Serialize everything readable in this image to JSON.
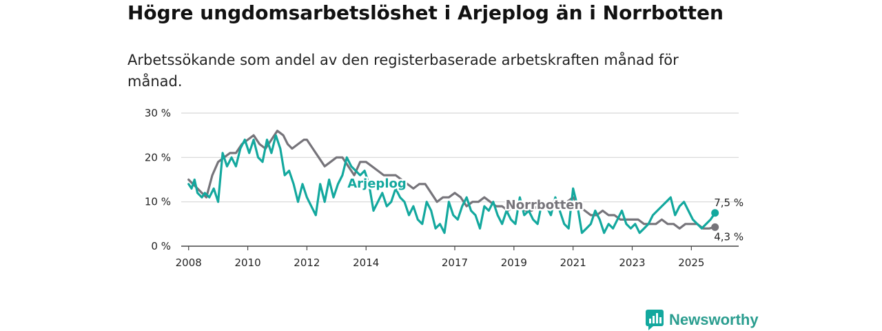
{
  "title": "Högre ungdomsarbetslöshet i Arjeplog än i Norrbotten",
  "subtitle": "Arbetssökande som andel av den registerbaserade arbetskraften månad för månad.",
  "brand": {
    "name": "Newsworthy"
  },
  "colors": {
    "arjeplog": "#13a89e",
    "norrbotten": "#76747a",
    "grid": "#d6d6d6",
    "axis": "#444444"
  },
  "chart_data": {
    "type": "line",
    "y_ticks": [
      {
        "value": 0,
        "label": "0 %"
      },
      {
        "value": 10,
        "label": "10 %"
      },
      {
        "value": 20,
        "label": "20 %"
      },
      {
        "value": 30,
        "label": "30 %"
      }
    ],
    "ylim": [
      0,
      30
    ],
    "xlim": [
      2007.75,
      2026.6
    ],
    "x_ticks": [
      {
        "value": 2008,
        "label": "2008"
      },
      {
        "value": 2010,
        "label": "2010"
      },
      {
        "value": 2012,
        "label": "2012"
      },
      {
        "value": 2014,
        "label": "2014"
      },
      {
        "value": 2017,
        "label": "2017"
      },
      {
        "value": 2019,
        "label": "2019"
      },
      {
        "value": 2021,
        "label": "2021"
      },
      {
        "value": 2023,
        "label": "2023"
      },
      {
        "value": 2025,
        "label": "2025"
      }
    ],
    "series": [
      {
        "name": "Norrbotten",
        "label": "Norrbotten",
        "end_label": "4,3 %",
        "x": [
          2008.0,
          2008.3,
          2008.6,
          2008.8,
          2009.0,
          2009.2,
          2009.4,
          2009.6,
          2009.8,
          2010.0,
          2010.2,
          2010.4,
          2010.6,
          2010.8,
          2011.0,
          2011.2,
          2011.35,
          2011.5,
          2011.7,
          2011.9,
          2012.0,
          2012.2,
          2012.4,
          2012.6,
          2012.8,
          2013.0,
          2013.2,
          2013.4,
          2013.6,
          2013.8,
          2014.0,
          2014.2,
          2014.4,
          2014.6,
          2014.8,
          2015.0,
          2015.2,
          2015.4,
          2015.6,
          2015.8,
          2016.0,
          2016.2,
          2016.4,
          2016.6,
          2016.8,
          2017.0,
          2017.2,
          2017.4,
          2017.6,
          2017.8,
          2018.0,
          2018.2,
          2018.4,
          2018.6,
          2018.8,
          2019.0,
          2019.2,
          2019.4,
          2019.6,
          2019.8,
          2020.0,
          2020.2,
          2020.4,
          2020.6,
          2020.8,
          2021.0,
          2021.2,
          2021.4,
          2021.6,
          2021.8,
          2022.0,
          2022.2,
          2022.4,
          2022.6,
          2022.8,
          2023.0,
          2023.2,
          2023.4,
          2023.6,
          2023.8,
          2024.0,
          2024.2,
          2024.4,
          2024.6,
          2024.8,
          2025.0,
          2025.2,
          2025.4,
          2025.6,
          2025.8
        ],
        "values": [
          15,
          13,
          11,
          16,
          19,
          20,
          21,
          21,
          23,
          24,
          25,
          23,
          22,
          24,
          26,
          25,
          23,
          22,
          23,
          24,
          24,
          22,
          20,
          18,
          19,
          20,
          20,
          18,
          16,
          19,
          19,
          18,
          17,
          16,
          16,
          16,
          15,
          14,
          13,
          14,
          14,
          12,
          10,
          11,
          11,
          12,
          11,
          9,
          10,
          10,
          11,
          10,
          9,
          9,
          8,
          9,
          9,
          8,
          8,
          9,
          9,
          10,
          10,
          9,
          10,
          11,
          9,
          8,
          7,
          7,
          8,
          7,
          7,
          6,
          6,
          6,
          6,
          5,
          5,
          5,
          6,
          5,
          5,
          4,
          5,
          5,
          5,
          4,
          4,
          4.3
        ]
      },
      {
        "name": "Arjeplog",
        "label": "Arjeplog",
        "end_label": "7,5 %",
        "x": [
          2008.0,
          2008.1,
          2008.2,
          2008.3,
          2008.45,
          2008.55,
          2008.7,
          2008.85,
          2009.0,
          2009.15,
          2009.3,
          2009.45,
          2009.6,
          2009.75,
          2009.9,
          2010.05,
          2010.2,
          2010.35,
          2010.5,
          2010.65,
          2010.8,
          2010.95,
          2011.1,
          2011.25,
          2011.4,
          2011.55,
          2011.7,
          2011.85,
          2012.0,
          2012.15,
          2012.3,
          2012.45,
          2012.6,
          2012.75,
          2012.9,
          2013.05,
          2013.2,
          2013.35,
          2013.5,
          2013.65,
          2013.8,
          2013.95,
          2014.1,
          2014.25,
          2014.4,
          2014.55,
          2014.7,
          2014.85,
          2015.0,
          2015.15,
          2015.3,
          2015.45,
          2015.6,
          2015.75,
          2015.9,
          2016.05,
          2016.2,
          2016.35,
          2016.5,
          2016.65,
          2016.8,
          2016.95,
          2017.1,
          2017.25,
          2017.4,
          2017.55,
          2017.7,
          2017.85,
          2018.0,
          2018.15,
          2018.3,
          2018.45,
          2018.6,
          2018.75,
          2018.9,
          2019.05,
          2019.2,
          2019.35,
          2019.5,
          2019.65,
          2019.8,
          2019.95,
          2020.1,
          2020.25,
          2020.4,
          2020.55,
          2020.7,
          2020.85,
          2021.0,
          2021.15,
          2021.3,
          2021.45,
          2021.6,
          2021.75,
          2021.9,
          2022.05,
          2022.2,
          2022.35,
          2022.5,
          2022.65,
          2022.8,
          2022.95,
          2023.1,
          2023.25,
          2023.4,
          2023.55,
          2023.7,
          2023.85,
          2024.0,
          2024.15,
          2024.3,
          2024.45,
          2024.6,
          2024.75,
          2024.9,
          2025.05,
          2025.2,
          2025.35,
          2025.5,
          2025.65,
          2025.8
        ],
        "values": [
          14,
          13,
          15,
          12,
          11,
          12,
          11,
          13,
          10,
          21,
          18,
          20,
          18,
          22,
          24,
          21,
          24,
          20,
          19,
          24,
          21,
          25,
          22,
          16,
          17,
          14,
          10,
          14,
          11,
          9,
          7,
          14,
          10,
          15,
          11,
          14,
          16,
          20,
          18,
          17,
          16,
          17,
          14,
          8,
          10,
          12,
          9,
          10,
          13,
          11,
          10,
          7,
          9,
          6,
          5,
          10,
          8,
          4,
          5,
          3,
          10,
          7,
          6,
          9,
          11,
          8,
          7,
          4,
          9,
          8,
          10,
          7,
          5,
          8,
          6,
          5,
          11,
          7,
          8,
          6,
          5,
          10,
          9,
          7,
          11,
          8,
          5,
          4,
          13,
          9,
          3,
          4,
          5,
          8,
          6,
          3,
          5,
          4,
          6,
          8,
          5,
          4,
          5,
          3,
          4,
          5,
          7,
          8,
          9,
          10,
          11,
          7,
          9,
          10,
          8,
          6,
          5,
          4,
          5,
          6,
          7.5
        ]
      }
    ]
  }
}
